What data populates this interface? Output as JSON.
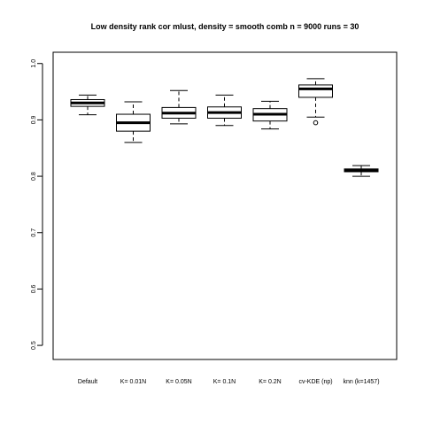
{
  "chart_data": {
    "type": "boxplot",
    "title": "Low density rank cor mlust, density = smooth comb n = 9000 runs = 30",
    "xlabel": "",
    "ylabel": "",
    "ylim": [
      0.475,
      1.02
    ],
    "yticks": [
      "0.5",
      "0.6",
      "0.7",
      "0.8",
      "0.9",
      "1.0"
    ],
    "grid": false,
    "categories": [
      "Default",
      "K= 0.01N",
      "K= 0.05N",
      "K= 0.1N",
      "K= 0.2N",
      "cv-KDE (np)",
      "knn (k=1457)"
    ],
    "boxes": [
      {
        "whisker_low": 0.909,
        "q1": 0.924,
        "median": 0.93,
        "q3": 0.936,
        "whisker_high": 0.944,
        "outliers": []
      },
      {
        "whisker_low": 0.86,
        "q1": 0.88,
        "median": 0.895,
        "q3": 0.91,
        "whisker_high": 0.932,
        "outliers": []
      },
      {
        "whisker_low": 0.893,
        "q1": 0.903,
        "median": 0.912,
        "q3": 0.922,
        "whisker_high": 0.952,
        "outliers": []
      },
      {
        "whisker_low": 0.89,
        "q1": 0.903,
        "median": 0.913,
        "q3": 0.923,
        "whisker_high": 0.944,
        "outliers": []
      },
      {
        "whisker_low": 0.884,
        "q1": 0.898,
        "median": 0.91,
        "q3": 0.92,
        "whisker_high": 0.933,
        "outliers": []
      },
      {
        "whisker_low": 0.905,
        "q1": 0.94,
        "median": 0.955,
        "q3": 0.962,
        "whisker_high": 0.973,
        "outliers": [
          0.895
        ]
      },
      {
        "whisker_low": 0.8,
        "q1": 0.808,
        "median": 0.811,
        "q3": 0.813,
        "whisker_high": 0.819,
        "outliers": []
      }
    ]
  }
}
